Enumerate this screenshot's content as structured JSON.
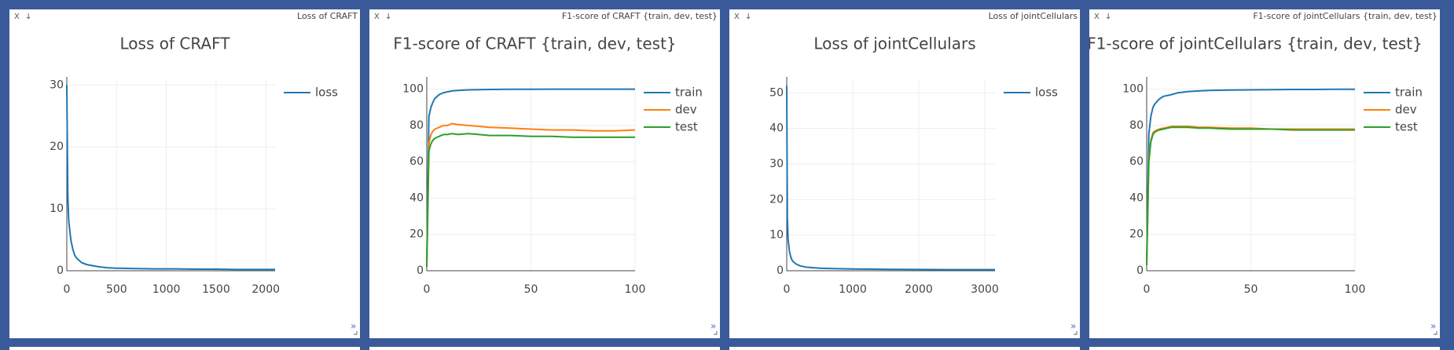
{
  "chart_data": [
    {
      "type": "line",
      "window_title": "Loss of CRAFT",
      "title": "Loss of CRAFT",
      "x": [
        0,
        10,
        20,
        40,
        60,
        80,
        100,
        150,
        200,
        300,
        400,
        500,
        700,
        900,
        1100,
        1300,
        1500,
        1700,
        1900,
        2093
      ],
      "series": [
        {
          "name": "loss",
          "color": "#1f77b4",
          "values": [
            30,
            12,
            8,
            5,
            3.5,
            2.5,
            2,
            1.3,
            1,
            0.7,
            0.5,
            0.4,
            0.35,
            0.3,
            0.3,
            0.25,
            0.25,
            0.2,
            0.2,
            0.2
          ]
        }
      ],
      "xlim": [
        0,
        2093
      ],
      "xticks": [
        0,
        500,
        1000,
        1500,
        2000
      ],
      "ylim": [
        0,
        30.8
      ],
      "yticks": [
        0,
        10,
        20,
        30
      ],
      "grid": true,
      "legend": "right"
    },
    {
      "type": "line",
      "window_title": "F1-score of CRAFT {train, dev, test}",
      "title": "F1-score of CRAFT {train, dev, test}",
      "x": [
        0,
        1,
        2,
        3,
        4,
        6,
        8,
        10,
        12,
        15,
        20,
        25,
        30,
        40,
        50,
        60,
        70,
        80,
        90,
        100
      ],
      "series": [
        {
          "name": "train",
          "color": "#1f77b4",
          "values": [
            5,
            85,
            90,
            93,
            95,
            97,
            98,
            98.5,
            99,
            99.3,
            99.6,
            99.7,
            99.8,
            99.9,
            99.9,
            100,
            100,
            100,
            100,
            100
          ]
        },
        {
          "name": "dev",
          "color": "#ff7f0e",
          "values": [
            2,
            70,
            75,
            77,
            78,
            79,
            80,
            80,
            81,
            80.5,
            80,
            79.5,
            79,
            78.5,
            78,
            77.5,
            77.5,
            77,
            77,
            77.5
          ]
        },
        {
          "name": "test",
          "color": "#2ca02c",
          "values": [
            2,
            66,
            70,
            72,
            73,
            74,
            75,
            75,
            75.5,
            75,
            75.5,
            75,
            74.5,
            74.5,
            74,
            74,
            73.5,
            73.5,
            73.5,
            73.5
          ]
        }
      ],
      "xlim": [
        0,
        100
      ],
      "xticks": [
        0,
        50,
        100
      ],
      "ylim": [
        0,
        105
      ],
      "yticks": [
        0,
        20,
        40,
        60,
        80,
        100
      ],
      "grid": true,
      "legend": "right"
    },
    {
      "type": "line",
      "window_title": "Loss of jointCellulars",
      "title": "Loss of jointCellulars",
      "x": [
        0,
        10,
        20,
        40,
        60,
        80,
        100,
        150,
        200,
        300,
        500,
        700,
        1000,
        1300,
        1600,
        2000,
        2400,
        2800,
        3155
      ],
      "series": [
        {
          "name": "loss",
          "color": "#1f77b4",
          "values": [
            52,
            15,
            9,
            5.5,
            4,
            3,
            2.5,
            1.8,
            1.4,
            1,
            0.7,
            0.6,
            0.5,
            0.45,
            0.4,
            0.35,
            0.3,
            0.3,
            0.3
          ]
        }
      ],
      "xlim": [
        0,
        3155
      ],
      "xticks": [
        0,
        1000,
        2000,
        3000
      ],
      "ylim": [
        0,
        53.6
      ],
      "yticks": [
        0,
        10,
        20,
        30,
        40,
        50
      ],
      "grid": true,
      "legend": "right"
    },
    {
      "type": "line",
      "window_title": "F1-score of jointCellulars {train, dev, test}",
      "title": "F1-score of jointCellulars {train, dev, test}",
      "x": [
        0,
        1,
        2,
        3,
        4,
        6,
        8,
        10,
        12,
        15,
        20,
        25,
        30,
        40,
        50,
        60,
        70,
        80,
        90,
        100
      ],
      "series": [
        {
          "name": "train",
          "color": "#1f77b4",
          "values": [
            5,
            75,
            85,
            90,
            92,
            94.5,
            96,
            96.5,
            97,
            98,
            98.7,
            99,
            99.3,
            99.5,
            99.6,
            99.7,
            99.8,
            99.8,
            99.9,
            99.9
          ]
        },
        {
          "name": "dev",
          "color": "#ff7f0e",
          "values": [
            3,
            62,
            72,
            76,
            77,
            78,
            78.5,
            79,
            79.5,
            79.5,
            79.5,
            79,
            79,
            78.5,
            78.5,
            78,
            78,
            78,
            78,
            78
          ]
        },
        {
          "name": "test",
          "color": "#2ca02c",
          "values": [
            3,
            60,
            71,
            75,
            76.5,
            77.5,
            78,
            78.5,
            79,
            79,
            79,
            78.5,
            78.5,
            78,
            78,
            78,
            77.5,
            77.5,
            77.5,
            77.5
          ]
        }
      ],
      "xlim": [
        0,
        100
      ],
      "xticks": [
        0,
        50,
        100
      ],
      "ylim": [
        0,
        105
      ],
      "yticks": [
        0,
        20,
        40,
        60,
        80,
        100
      ],
      "grid": true,
      "legend": "right"
    }
  ]
}
